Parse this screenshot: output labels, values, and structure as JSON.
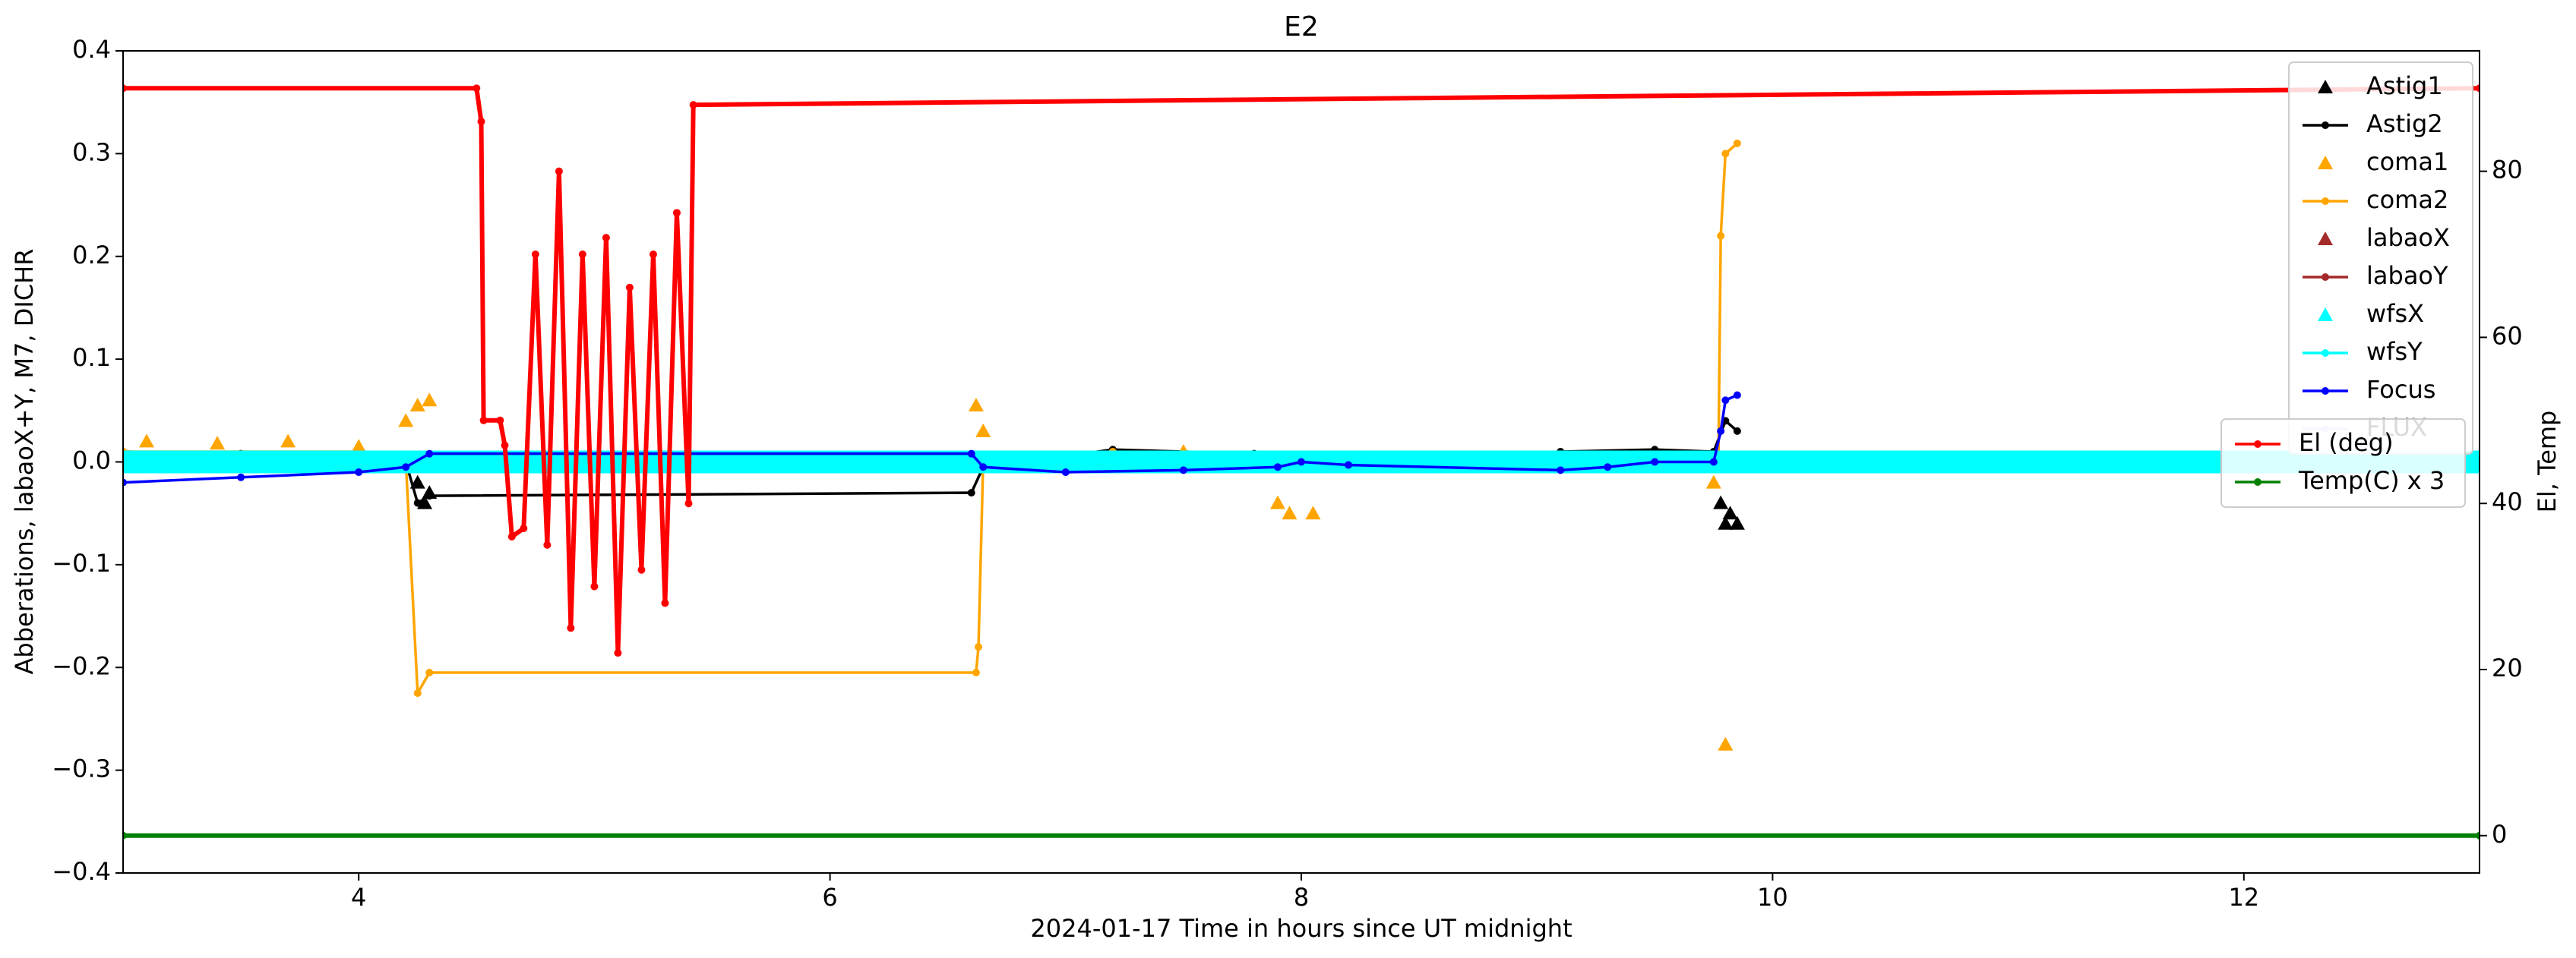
{
  "chart_data": {
    "type": "line",
    "title": "E2",
    "x_label": "2024-01-17  Time in hours since UT midnight",
    "y_label": "Abberations, labaoX+Y, M7, DICHR",
    "y2_label": "El, Temp",
    "xlim": [
      3,
      13
    ],
    "xticks": [
      4,
      6,
      8,
      10,
      12
    ],
    "ylim": [
      -0.4,
      0.4
    ],
    "yticks": [
      {
        "value": -0.4,
        "label": "−0.4"
      },
      {
        "value": -0.3,
        "label": "−0.3"
      },
      {
        "value": -0.2,
        "label": "−0.2"
      },
      {
        "value": -0.1,
        "label": "−0.1"
      },
      {
        "value": 0,
        "label": "0.0"
      },
      0.1,
      0.2,
      0.3,
      0.4
    ],
    "y2lim": [
      -4.5,
      94.5
    ],
    "y2ticks": [
      0,
      20,
      40,
      60,
      80
    ],
    "legend_loc": "upper right",
    "legend2_loc": "center right",
    "series": [
      {
        "name": "Astig1",
        "color": "#000000",
        "style": "markers",
        "x": [
          4.25,
          4.28,
          4.3,
          9.78,
          9.8,
          9.82,
          9.85
        ],
        "values": [
          -0.02,
          -0.04,
          -0.03,
          -0.04,
          -0.06,
          -0.05,
          -0.06
        ]
      },
      {
        "name": "Astig2",
        "color": "#000000",
        "style": "line",
        "x": [
          3.0,
          3.5,
          4.0,
          4.2,
          4.25,
          4.3,
          6.6,
          6.65,
          7.2,
          7.8,
          8.0,
          8.1,
          9.1,
          9.5,
          9.75,
          9.8,
          9.85
        ],
        "values": [
          0.01,
          0.008,
          0.006,
          0.0,
          -0.04,
          -0.033,
          -0.03,
          -0.005,
          0.012,
          0.008,
          0.0,
          -0.003,
          0.01,
          0.012,
          0.01,
          0.04,
          0.03
        ]
      },
      {
        "name": "coma1",
        "color": "#ffa500",
        "style": "markers",
        "x": [
          3.1,
          3.4,
          3.7,
          4.0,
          4.2,
          4.25,
          4.3,
          6.62,
          6.65,
          7.5,
          7.9,
          7.95,
          8.05,
          9.75,
          9.8
        ],
        "values": [
          0.02,
          0.018,
          0.02,
          0.015,
          0.04,
          0.055,
          0.06,
          0.055,
          0.03,
          0.01,
          -0.04,
          -0.05,
          -0.05,
          -0.02,
          -0.275
        ]
      },
      {
        "name": "coma2",
        "color": "#ffa500",
        "style": "line",
        "x": [
          3.0,
          4.0,
          4.2,
          4.25,
          4.3,
          6.62,
          6.63,
          6.65,
          7.2,
          8.0,
          9.1,
          9.7,
          9.77,
          9.78,
          9.8,
          9.85
        ],
        "values": [
          0.01,
          0.01,
          0.0,
          -0.225,
          -0.205,
          -0.205,
          -0.18,
          0.0,
          0.01,
          0.0,
          0.005,
          0.0,
          0.0,
          0.22,
          0.3,
          0.31
        ]
      },
      {
        "name": "labaoX",
        "color": "#a52a2a",
        "style": "markers",
        "x": [
          3.0,
          13.0
        ],
        "values": [
          0,
          0
        ]
      },
      {
        "name": "labaoY",
        "color": "#a52a2a",
        "style": "line",
        "x": [
          3.0,
          13.0
        ],
        "values": [
          0,
          0
        ]
      },
      {
        "name": "wfsX",
        "color": "#00ffff",
        "style": "markers",
        "x": [
          3.0,
          3.25,
          3.5,
          3.75,
          4.0,
          4.25,
          4.5,
          4.75,
          5.0,
          5.25,
          5.5,
          5.75,
          6.0,
          6.25,
          6.5,
          6.75,
          7.0,
          7.25,
          7.5,
          7.75,
          8.0,
          8.25,
          8.5,
          8.75,
          9.0,
          9.25,
          9.5,
          9.75,
          10.0,
          10.25,
          10.5,
          10.75,
          11.0,
          11.25,
          11.5,
          11.75,
          12.0,
          12.25,
          12.5,
          12.75,
          13.0
        ],
        "values": [
          0,
          0,
          0,
          0,
          0,
          0,
          0,
          0,
          0,
          0,
          0,
          0,
          0,
          0,
          0,
          0,
          0,
          0,
          0,
          0,
          0,
          0,
          0,
          0,
          0,
          0,
          0,
          0,
          0,
          0,
          0,
          0,
          0,
          0,
          0,
          0,
          0,
          0,
          0,
          0,
          0
        ]
      },
      {
        "name": "wfsY",
        "color": "#00ffff",
        "style": "line",
        "x": [
          3.0,
          13.0
        ],
        "values": [
          0,
          0
        ]
      },
      {
        "name": "Focus",
        "color": "#0000ff",
        "style": "line",
        "x": [
          3.0,
          3.5,
          4.0,
          4.2,
          4.3,
          6.6,
          6.65,
          7.0,
          7.5,
          7.9,
          8.0,
          8.2,
          9.1,
          9.3,
          9.5,
          9.75,
          9.78,
          9.8,
          9.85
        ],
        "values": [
          -0.02,
          -0.015,
          -0.01,
          -0.005,
          0.008,
          0.008,
          -0.005,
          -0.01,
          -0.008,
          -0.005,
          0.0,
          -0.003,
          -0.008,
          -0.005,
          0.0,
          0.0,
          0.03,
          0.06,
          0.065
        ]
      },
      {
        "name": "FLUX",
        "color": "#c8c8ff",
        "style": "line",
        "x": [],
        "values": []
      },
      {
        "name": "El (deg)",
        "color": "#ff0000",
        "style": "line",
        "axis": "y2",
        "x": [
          3.0,
          4.5,
          4.52,
          4.53,
          4.6,
          4.62,
          4.65,
          4.7,
          4.75,
          4.8,
          4.85,
          4.9,
          4.95,
          5.0,
          5.05,
          5.1,
          5.15,
          5.2,
          5.25,
          5.3,
          5.35,
          5.4,
          5.42,
          13.0
        ],
        "values": [
          90,
          90,
          86,
          50,
          50,
          47,
          36,
          37,
          70,
          35,
          80,
          25,
          70,
          30,
          72,
          22,
          66,
          32,
          70,
          28,
          75,
          40,
          88,
          90
        ]
      },
      {
        "name": "Temp(C) x 3",
        "color": "#008000",
        "style": "line",
        "axis": "y2",
        "x": [
          3.0,
          13.0
        ],
        "values": [
          0,
          0
        ]
      }
    ]
  }
}
